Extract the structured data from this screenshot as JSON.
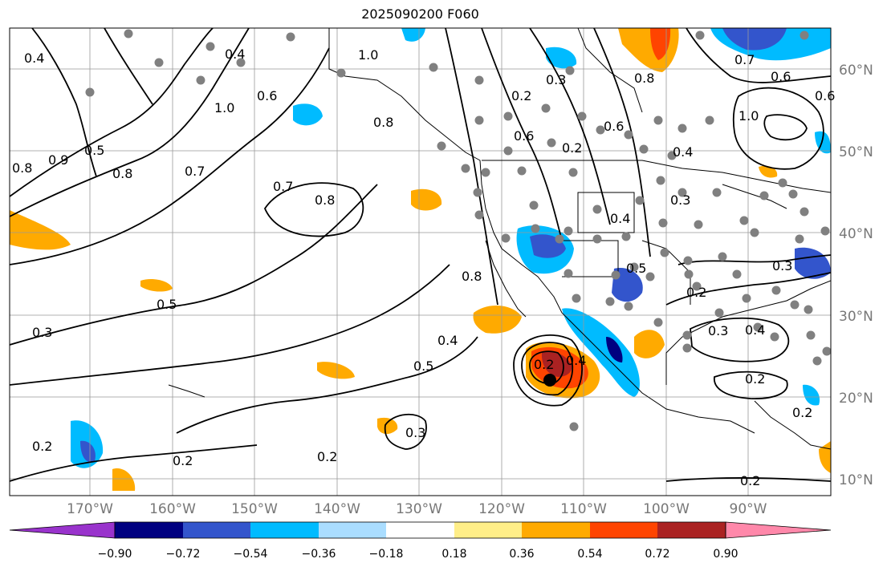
{
  "title": "2025090200 F060",
  "longitude_labels": [
    "170°W",
    "160°W",
    "150°W",
    "140°W",
    "130°W",
    "120°W",
    "110°W",
    "100°W",
    "90°W"
  ],
  "latitude_labels": [
    "60°N",
    "50°N",
    "40°N",
    "30°N",
    "20°N",
    "10°N"
  ],
  "colorbar": {
    "ticks": [
      "−0.90",
      "−0.72",
      "−0.54",
      "−0.36",
      "−0.18",
      "0.18",
      "0.36",
      "0.54",
      "0.72",
      "0.90"
    ],
    "colors": [
      "#9933cc",
      "#000080",
      "#3355cc",
      "#00bbff",
      "#aaddff",
      "#ffffff",
      "#ffee88",
      "#ffaa00",
      "#ff4400",
      "#aa2222",
      "#ff88aa"
    ]
  },
  "contour_labels": [
    "0.4",
    "0.5",
    "0.6",
    "0.7",
    "0.8",
    "0.9",
    "1.0",
    "0.2",
    "0.3"
  ],
  "colors": {
    "contour": "#000000",
    "coast": "#000000",
    "grid": "#999999",
    "station": "#808080"
  }
}
